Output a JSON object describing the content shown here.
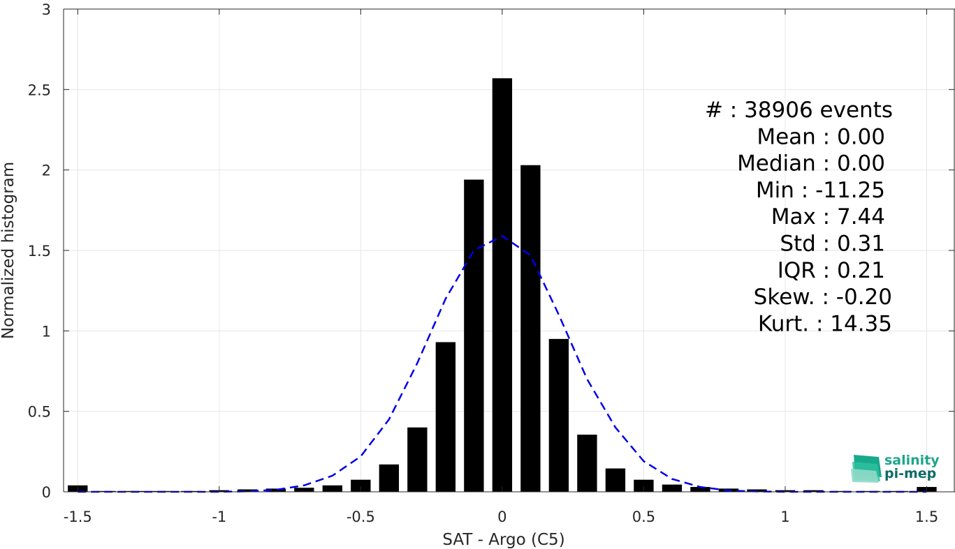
{
  "chart_data": {
    "type": "bar",
    "xlabel": "SAT - Argo (C5)",
    "ylabel": "Normalized histogram",
    "xlim": [
      -1.55,
      1.6
    ],
    "ylim": [
      0,
      3
    ],
    "grid": true,
    "x_ticks": [
      "-1.5",
      "-1",
      "-0.5",
      "0",
      "0.5",
      "1",
      "1.5"
    ],
    "x_tick_values": [
      -1.5,
      -1,
      -0.5,
      0,
      0.5,
      1,
      1.5
    ],
    "y_ticks": [
      "0",
      "0.5",
      "1",
      "1.5",
      "2",
      "2.5",
      "3"
    ],
    "y_tick_values": [
      0,
      0.5,
      1,
      1.5,
      2,
      2.5,
      3
    ],
    "bar_color": "#000000",
    "bar_width": 0.07,
    "bars": {
      "x": [
        -1.5,
        -1.4,
        -1.3,
        -1.2,
        -1.1,
        -1.0,
        -0.9,
        -0.8,
        -0.7,
        -0.6,
        -0.5,
        -0.4,
        -0.3,
        -0.2,
        -0.1,
        0.0,
        0.1,
        0.2,
        0.3,
        0.4,
        0.5,
        0.6,
        0.7,
        0.8,
        0.9,
        1.0,
        1.1,
        1.2,
        1.3,
        1.4,
        1.5
      ],
      "y": [
        0.04,
        0.005,
        0.005,
        0.005,
        0.005,
        0.01,
        0.015,
        0.02,
        0.025,
        0.04,
        0.075,
        0.17,
        0.4,
        0.93,
        1.94,
        2.57,
        2.03,
        0.95,
        0.355,
        0.145,
        0.075,
        0.045,
        0.03,
        0.02,
        0.015,
        0.01,
        0.01,
        0.005,
        0.005,
        0.005,
        0.03
      ]
    },
    "fit_curve": {
      "name": "Gaussian",
      "color": "#0000e6",
      "style": "dashed",
      "x": [
        -1.5,
        -1.4,
        -1.3,
        -1.2,
        -1.1,
        -1.0,
        -0.9,
        -0.8,
        -0.7,
        -0.6,
        -0.5,
        -0.4,
        -0.3,
        -0.2,
        -0.1,
        0.0,
        0.1,
        0.2,
        0.3,
        0.4,
        0.5,
        0.6,
        0.7,
        0.8,
        0.9,
        1.0,
        1.1,
        1.2,
        1.3,
        1.4,
        1.5
      ],
      "y": [
        0.0,
        0.0,
        0.0,
        0.0,
        0.0,
        0.0,
        0.003,
        0.012,
        0.04,
        0.1,
        0.22,
        0.45,
        0.8,
        1.2,
        1.5,
        1.59,
        1.47,
        1.1,
        0.7,
        0.4,
        0.19,
        0.08,
        0.03,
        0.008,
        0.002,
        0.0,
        0.0,
        0.0,
        0.0,
        0.0,
        0.0
      ]
    },
    "annotation_lines": [
      "#  : 38906 events",
      "Mean : 0.00",
      "Median : 0.00",
      "Min : -11.25",
      "Max : 7.44",
      "Std : 0.31",
      "IQR : 0.21",
      "Skew. : -0.20",
      "Kurt. : 14.35"
    ]
  },
  "logo": {
    "line1": "salinity",
    "line2": "pi-mep",
    "colors": [
      "#17a98c",
      "#0f6b66",
      "#7fd0c0"
    ]
  }
}
